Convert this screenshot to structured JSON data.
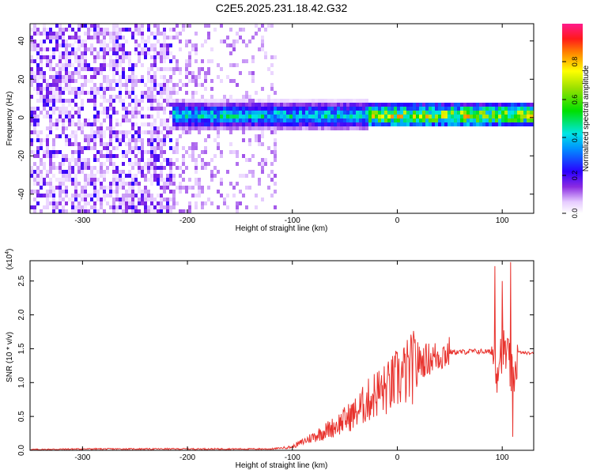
{
  "title": "C2E5.2025.231.18.42.G32",
  "chart_data": [
    {
      "type": "heatmap",
      "xlabel": "Height of straight line (km)",
      "ylabel": "Frequency (Hz)",
      "xlim": [
        -350,
        130
      ],
      "ylim": [
        -50,
        49
      ],
      "xticks": [
        -300,
        -200,
        -100,
        0,
        100
      ],
      "yticks": [
        -40,
        -20,
        0,
        20,
        40
      ],
      "colorbar": {
        "label": "Normalized spectral amplitude",
        "range": [
          0,
          1
        ],
        "ticks": [
          "0.0",
          "0.2",
          "0.4",
          "0.6",
          "0.8"
        ],
        "colormap": "rainbow (white-violet-blue-cyan-green-yellow-red-magenta)"
      },
      "features": {
        "noise_region_x": [
          -350,
          -115
        ],
        "dense_noise_x": [
          -350,
          -215
        ],
        "signal_band_x": [
          -215,
          130
        ],
        "signal_center_hz": 0,
        "signal_halfwidth_hz": 5
      }
    },
    {
      "type": "line",
      "xlabel": "Height of straight line (km)",
      "ylabel": "SNR (10 * v/v)",
      "scale_label": "(x10",
      "scale_exp": "4",
      "scale_close": ")",
      "xlim": [
        -350,
        130
      ],
      "ylim": [
        0,
        2.8
      ],
      "xticks": [
        -300,
        -200,
        -100,
        0,
        100
      ],
      "yticks": [
        "0.0",
        "0.5",
        "1.0",
        "1.5",
        "2.0",
        "2.5"
      ],
      "series_color": "#e8322d",
      "x": [
        -350,
        -300,
        -200,
        -120,
        -100,
        -80,
        -60,
        -40,
        -20,
        -10,
        0,
        10,
        20,
        30,
        40,
        50,
        60,
        70,
        80,
        90,
        95,
        100,
        105,
        110,
        115,
        120,
        130
      ],
      "y": [
        0.01,
        0.02,
        0.02,
        0.02,
        0.05,
        0.2,
        0.35,
        0.55,
        0.85,
        0.9,
        1.05,
        1.15,
        1.3,
        1.35,
        1.4,
        1.45,
        1.45,
        1.46,
        1.46,
        1.45,
        1.3,
        1.5,
        1.4,
        1.0,
        1.45,
        1.44,
        1.43
      ],
      "spikes": [
        {
          "x": 93,
          "y": 2.72
        },
        {
          "x": 95,
          "y": 0.85
        },
        {
          "x": 100,
          "y": 2.5
        },
        {
          "x": 108,
          "y": 2.78
        },
        {
          "x": 110,
          "y": 0.2
        }
      ]
    }
  ]
}
